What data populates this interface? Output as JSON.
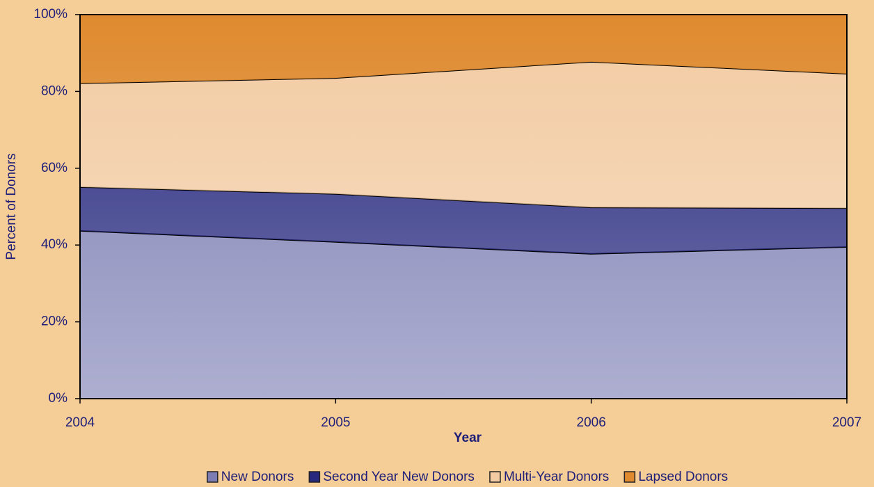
{
  "chart_data": {
    "type": "area",
    "stacked": true,
    "x": [
      2004,
      2005,
      2006,
      2007
    ],
    "xlim": [
      2004,
      2007
    ],
    "xticks": [
      2004,
      2005,
      2006,
      2007
    ],
    "x_label": "Year",
    "y_label": "Percent of Donors",
    "ylim": [
      0,
      100
    ],
    "yticks": [
      {
        "value": 0,
        "label": "0%"
      },
      {
        "value": 20,
        "label": "20%"
      },
      {
        "value": 40,
        "label": "40%"
      },
      {
        "value": 60,
        "label": "60%"
      },
      {
        "value": 80,
        "label": "80%"
      },
      {
        "value": 100,
        "label": "100%"
      }
    ],
    "legend": "bottom",
    "series": [
      {
        "name": "New Donors",
        "color": "#7b7db3",
        "values": [
          43.7,
          40.8,
          37.7,
          39.5
        ]
      },
      {
        "name": "Second Year New Donors",
        "color": "#27297f",
        "values": [
          11.4,
          12.5,
          12.1,
          10.1
        ]
      },
      {
        "name": "Multi-Year Donors",
        "color": "#f2cba2",
        "values": [
          27.0,
          30.2,
          37.9,
          35.0
        ]
      },
      {
        "name": "Lapsed Donors",
        "color": "#df8a2f",
        "values": [
          17.9,
          16.5,
          12.3,
          15.4
        ]
      }
    ]
  }
}
